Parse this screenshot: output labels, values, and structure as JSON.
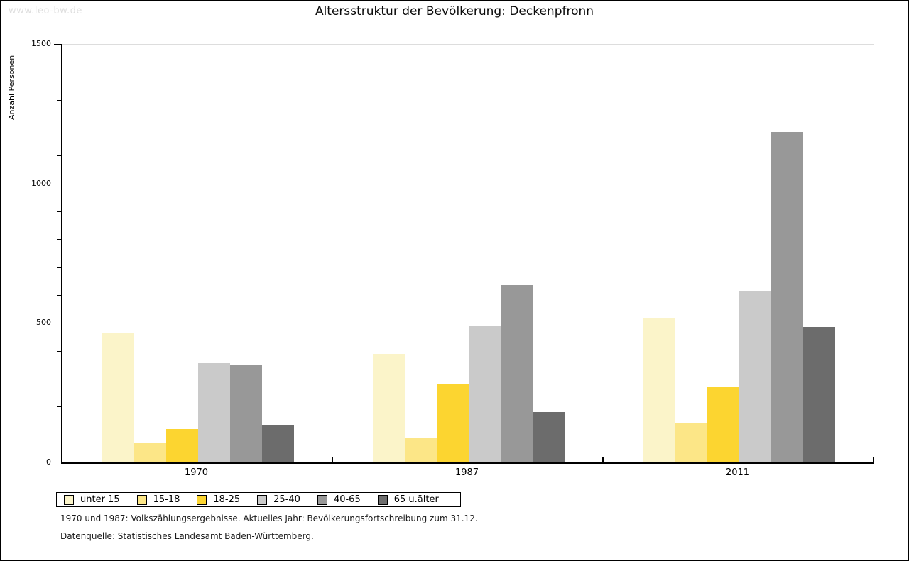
{
  "watermark": "www.leo-bw.de",
  "title": "Altersstruktur der Bevölkerung: Deckenpfronn",
  "footnotes": [
    "1970 und 1987: Volkszählungsergebnisse. Aktuelles Jahr: Bevölkerungsfortschreibung zum 31.12.",
    "Datenquelle: Statistisches Landesamt Baden-Württemberg."
  ],
  "chart_data": {
    "type": "bar",
    "title": "Altersstruktur der Bevölkerung: Deckenpfronn",
    "ylabel": "Anzahl Personen",
    "xlabel": "",
    "ylim": [
      0,
      1500
    ],
    "yticks": [
      0,
      500,
      1000,
      1500
    ],
    "ytick_minor_step": 100,
    "gridlines_at": [
      500,
      1000,
      1500
    ],
    "grid_color": "#dddddd",
    "legend_position": "bottom-left",
    "categories": [
      "1970",
      "1987",
      "2011"
    ],
    "series": [
      {
        "name": "unter 15",
        "color": "#FBF4C9",
        "values": [
          465,
          390,
          515
        ]
      },
      {
        "name": "15-18",
        "color": "#FCE687",
        "values": [
          70,
          90,
          140
        ]
      },
      {
        "name": "18-25",
        "color": "#FCD530",
        "values": [
          120,
          280,
          270
        ]
      },
      {
        "name": "25-40",
        "color": "#CACACA",
        "values": [
          355,
          490,
          615
        ]
      },
      {
        "name": "40-65",
        "color": "#989898",
        "values": [
          350,
          635,
          1185
        ]
      },
      {
        "name": "65 u.älter",
        "color": "#6C6C6C",
        "values": [
          135,
          180,
          485
        ]
      }
    ]
  }
}
